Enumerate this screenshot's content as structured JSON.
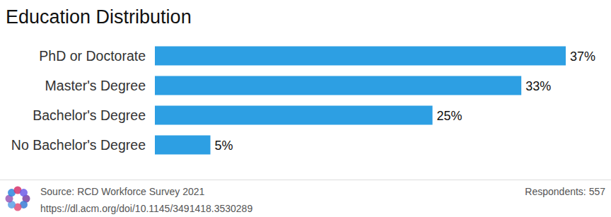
{
  "chart_data": {
    "type": "bar",
    "title": "Education Distribution",
    "orientation": "horizontal",
    "categories": [
      "PhD or Doctorate",
      "Master's Degree",
      "Bachelor's Degree",
      "No Bachelor's Degree"
    ],
    "values": [
      37,
      33,
      25,
      5
    ],
    "value_labels": [
      "37%",
      "33%",
      "25%",
      "5%"
    ],
    "data_labels": true,
    "tick_labels": "y",
    "grid": false,
    "color": "#2d9fe3",
    "source": "Source: RCD Workforce Survey 2021",
    "source_url": "https://dl.acm.org/doi/10.1145/3491418.3530289",
    "note": "Respondents: 557"
  }
}
